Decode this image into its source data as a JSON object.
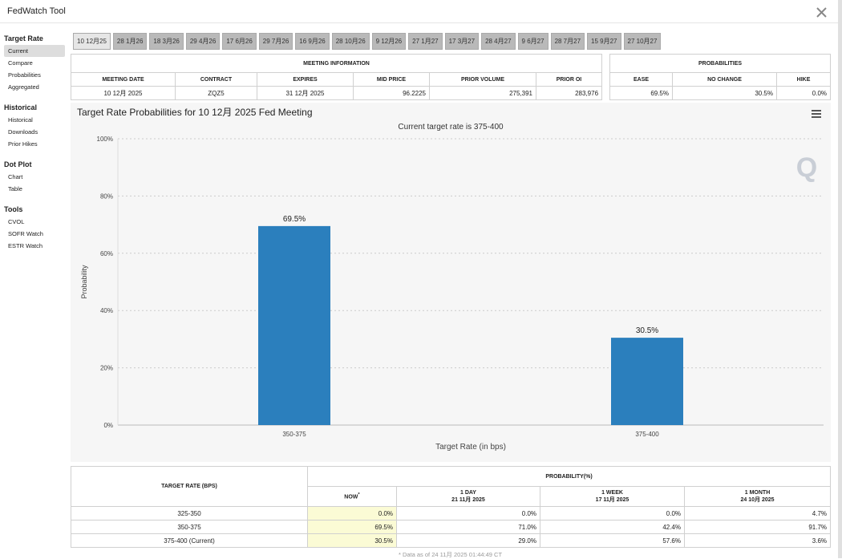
{
  "app_title": "FedWatch Tool",
  "sidebar": [
    {
      "heading": "Target Rate",
      "items": [
        "Current",
        "Compare",
        "Probabilities",
        "Aggregated"
      ]
    },
    {
      "heading": "Historical",
      "items": [
        "Historical",
        "Downloads",
        "Prior Hikes"
      ]
    },
    {
      "heading": "Dot Plot",
      "items": [
        "Chart",
        "Table"
      ]
    },
    {
      "heading": "Tools",
      "items": [
        "CVOL",
        "SOFR Watch",
        "ESTR Watch"
      ]
    }
  ],
  "tabs": [
    "10 12月25",
    "28 1月26",
    "18 3月26",
    "29 4月26",
    "17 6月26",
    "29 7月26",
    "16 9月26",
    "28 10月26",
    "9 12月26",
    "27 1月27",
    "17 3月27",
    "28 4月27",
    "9 6月27",
    "28 7月27",
    "15 9月27",
    "27 10月27"
  ],
  "meeting_info": {
    "title": "MEETING INFORMATION",
    "headers": [
      "MEETING DATE",
      "CONTRACT",
      "EXPIRES",
      "MID PRICE",
      "PRIOR VOLUME",
      "PRIOR OI"
    ],
    "row": [
      "10 12月 2025",
      "ZQZ5",
      "31 12月 2025",
      "96.2225",
      "275,391",
      "283,976"
    ]
  },
  "probabilities": {
    "title": "PROBABILITIES",
    "headers": [
      "EASE",
      "NO CHANGE",
      "HIKE"
    ],
    "row": [
      "69.5%",
      "30.5%",
      "0.0%"
    ]
  },
  "chart": {
    "type": "bar",
    "title": "Target Rate Probabilities for 10 12月 2025 Fed Meeting",
    "subtitle": "Current target rate is 375-400",
    "x_label": "Target Rate (in bps)",
    "y_label": "Probability",
    "categories": [
      "350-375",
      "375-400"
    ],
    "values": [
      69.5,
      30.5
    ],
    "value_labels": [
      "69.5%",
      "30.5%"
    ],
    "color": "#2b7fbd",
    "ylim": [
      0,
      100
    ],
    "yticks": [
      {
        "value": 0,
        "label": "0%"
      },
      {
        "value": 20,
        "label": "20%"
      },
      {
        "value": 40,
        "label": "40%"
      },
      {
        "value": 60,
        "label": "60%"
      },
      {
        "value": 80,
        "label": "80%"
      },
      {
        "value": 100,
        "label": "100%"
      }
    ],
    "grid": true
  },
  "prob_table": {
    "rate_header": "TARGET RATE (BPS)",
    "group_header": "PROBABILITY(%)",
    "columns": [
      {
        "label": "NOW",
        "mark": "*"
      },
      {
        "label": "1 DAY",
        "date": "21 11月 2025"
      },
      {
        "label": "1 WEEK",
        "date": "17 11月 2025"
      },
      {
        "label": "1 MONTH",
        "date": "24 10月 2025"
      }
    ],
    "rows": [
      [
        "325-350",
        "0.0%",
        "0.0%",
        "0.0%",
        "4.7%"
      ],
      [
        "350-375",
        "69.5%",
        "71.0%",
        "42.4%",
        "91.7%"
      ],
      [
        "375-400 (Current)",
        "30.5%",
        "29.0%",
        "57.6%",
        "3.6%"
      ]
    ],
    "footnote": "* Data as of 24 11月 2025 01:44:49 CT"
  }
}
